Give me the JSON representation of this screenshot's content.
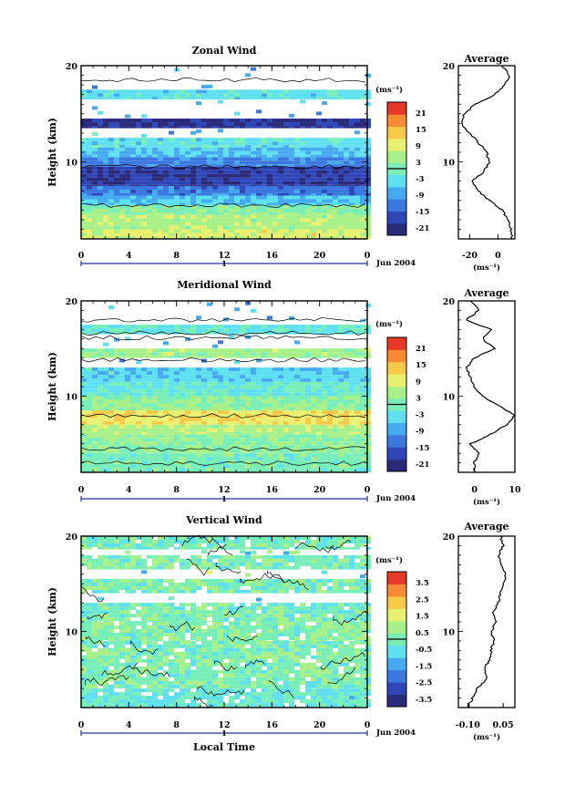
{
  "page": {
    "month_label": "Jun 2004",
    "day_label": "1",
    "xlabel_bottom": "Local Time"
  },
  "chart_data": [
    {
      "type": "heatmap",
      "title": "Zonal Wind",
      "xlabel": "",
      "ylabel": "Height (km)",
      "xlim": [
        0,
        24
      ],
      "ylim": [
        2,
        20
      ],
      "xticks": [
        "0",
        "4",
        "8",
        "12",
        "16",
        "20",
        "0"
      ],
      "yticks": [
        10,
        20
      ],
      "colorbar": {
        "unit": "(ms⁻¹)",
        "ticks": [
          "21",
          "15",
          "9",
          "3",
          "-3",
          "-9",
          "-15",
          "-21"
        ],
        "range": [
          -24,
          24
        ]
      },
      "profile": {
        "title": "Average",
        "unit": "(ms⁻¹)",
        "xlim": [
          -28,
          12
        ],
        "xticks": [
          "-20",
          "0"
        ],
        "heights": [
          2,
          3,
          4,
          5,
          6,
          7,
          8,
          9,
          10,
          11,
          12,
          13,
          14,
          15,
          16,
          17,
          18,
          19,
          20
        ],
        "values": [
          10,
          9,
          7,
          3,
          -6,
          -14,
          -18,
          -10,
          -6,
          -8,
          -14,
          -20,
          -26,
          -24,
          -16,
          -2,
          5,
          8,
          3
        ]
      },
      "bands": [
        {
          "h": [
            2.0,
            3.0
          ],
          "v": 8
        },
        {
          "h": [
            3.0,
            4.5
          ],
          "v": 5
        },
        {
          "h": [
            4.5,
            5.5
          ],
          "v": 2
        },
        {
          "h": [
            5.5,
            6.5
          ],
          "v": -6
        },
        {
          "h": [
            6.5,
            7.5
          ],
          "v": -13
        },
        {
          "h": [
            7.5,
            9.5
          ],
          "v": -19
        },
        {
          "h": [
            9.5,
            10.5
          ],
          "v": -12
        },
        {
          "h": [
            10.5,
            11.5
          ],
          "v": -7
        },
        {
          "h": [
            11.5,
            12.5
          ],
          "v": -4
        },
        {
          "h": [
            12.5,
            13.5
          ],
          "v": null
        },
        {
          "h": [
            13.5,
            14.5
          ],
          "v": -20
        },
        {
          "h": [
            14.5,
            16.5
          ],
          "v": null
        },
        {
          "h": [
            16.5,
            17.5
          ],
          "v": -4
        },
        {
          "h": [
            17.5,
            20
          ],
          "v": null
        }
      ]
    },
    {
      "type": "heatmap",
      "title": "Meridional Wind",
      "xlabel": "",
      "ylabel": "Height (km)",
      "xlim": [
        0,
        24
      ],
      "ylim": [
        2,
        20
      ],
      "xticks": [
        "0",
        "4",
        "8",
        "12",
        "16",
        "20",
        "0"
      ],
      "yticks": [
        10,
        20
      ],
      "colorbar": {
        "unit": "(ms⁻¹)",
        "ticks": [
          "21",
          "15",
          "9",
          "3",
          "-3",
          "-9",
          "-15",
          "-21"
        ],
        "range": [
          -24,
          24
        ]
      },
      "profile": {
        "title": "Average",
        "unit": "(ms⁻¹)",
        "xlim": [
          -4,
          10
        ],
        "xticks": [
          "0",
          "10"
        ],
        "heights": [
          2,
          3,
          4,
          5,
          6,
          7,
          8,
          9,
          10,
          11,
          12,
          13,
          14,
          15,
          16,
          17,
          18,
          19,
          20
        ],
        "values": [
          0,
          0,
          1,
          -1,
          4,
          8,
          10,
          6,
          2,
          0,
          -1,
          -2,
          0,
          5,
          2,
          4,
          -2,
          1,
          -1
        ]
      },
      "bands": [
        {
          "h": [
            2.0,
            4.0
          ],
          "v": 0
        },
        {
          "h": [
            4.0,
            6.0
          ],
          "v": 2
        },
        {
          "h": [
            6.0,
            7.0
          ],
          "v": 5
        },
        {
          "h": [
            7.0,
            8.5
          ],
          "v": 10
        },
        {
          "h": [
            8.5,
            10.0
          ],
          "v": 2
        },
        {
          "h": [
            10.0,
            11.5
          ],
          "v": -2
        },
        {
          "h": [
            11.5,
            13.0
          ],
          "v": -5
        },
        {
          "h": [
            13.0,
            14.0
          ],
          "v": null
        },
        {
          "h": [
            14.0,
            15.0
          ],
          "v": 4
        },
        {
          "h": [
            15.0,
            16.5
          ],
          "v": null
        },
        {
          "h": [
            16.5,
            17.5
          ],
          "v": -3
        },
        {
          "h": [
            17.5,
            20
          ],
          "v": null
        }
      ]
    },
    {
      "type": "heatmap",
      "title": "Vertical Wind",
      "xlabel": "Local Time",
      "ylabel": "Height (km)",
      "xlim": [
        0,
        24
      ],
      "ylim": [
        2,
        20
      ],
      "xticks": [
        "0",
        "4",
        "8",
        "12",
        "16",
        "20",
        "0"
      ],
      "yticks": [
        10,
        20
      ],
      "colorbar": {
        "unit": "(ms⁻¹)",
        "ticks": [
          "3.5",
          "2.5",
          "1.5",
          "0.5",
          "-0.5",
          "-1.5",
          "-2.5",
          "-3.5"
        ],
        "range": [
          -4,
          4
        ]
      },
      "profile": {
        "title": "Average",
        "unit": "(ms⁻¹)",
        "xlim": [
          -0.14,
          0.1
        ],
        "xticks": [
          "-0.10",
          "0.05"
        ],
        "heights": [
          2,
          3,
          4,
          5,
          6,
          7,
          8,
          9,
          10,
          11,
          12,
          13,
          14,
          15,
          16,
          17,
          18,
          19,
          20
        ],
        "values": [
          -0.1,
          -0.08,
          -0.06,
          -0.02,
          -0.03,
          -0.01,
          0.0,
          0.01,
          0.0,
          0.02,
          0.01,
          0.03,
          0.04,
          0.05,
          0.06,
          0.04,
          0.03,
          0.05,
          0.04
        ]
      },
      "bands": [
        {
          "h": [
            2.0,
            4.0
          ],
          "v": -0.4
        },
        {
          "h": [
            4.0,
            9.0
          ],
          "v": 0.1
        },
        {
          "h": [
            9.0,
            11.0
          ],
          "v": 0.2
        },
        {
          "h": [
            11.0,
            13.0
          ],
          "v": 0.0
        },
        {
          "h": [
            13.0,
            14.0
          ],
          "v": null
        },
        {
          "h": [
            14.0,
            15.5
          ],
          "v": 0.0
        },
        {
          "h": [
            15.5,
            16.5
          ],
          "v": null
        },
        {
          "h": [
            16.5,
            18.0
          ],
          "v": 0.0
        },
        {
          "h": [
            18.0,
            18.6
          ],
          "v": null
        },
        {
          "h": [
            18.6,
            20.0
          ],
          "v": 0.0
        }
      ]
    }
  ]
}
